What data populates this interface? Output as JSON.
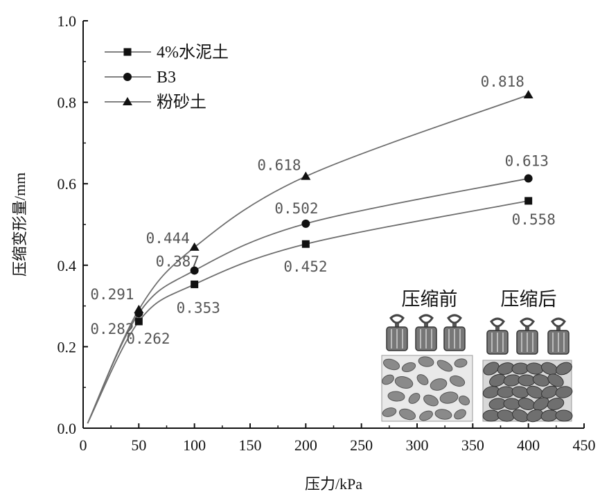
{
  "chart_data": {
    "type": "line",
    "xlabel": "压力/kPa",
    "ylabel": "压缩变形量/mm",
    "xlim": [
      0,
      450
    ],
    "ylim": [
      0.0,
      1.0
    ],
    "x_ticks": [
      "0",
      "50",
      "100",
      "150",
      "200",
      "250",
      "300",
      "350",
      "400",
      "450"
    ],
    "y_ticks": [
      "0.0",
      "0.2",
      "0.4",
      "0.6",
      "0.8",
      "1.0"
    ],
    "grid": false,
    "legend_position": "top-left",
    "x": [
      50,
      100,
      200,
      400
    ],
    "series": [
      {
        "name": "4%水泥土",
        "marker": "square",
        "values": [
          0.262,
          0.353,
          0.452,
          0.558
        ],
        "labels": [
          "0.262",
          "0.353",
          "0.452",
          "0.558"
        ]
      },
      {
        "name": "B3",
        "marker": "circle",
        "values": [
          0.282,
          0.387,
          0.502,
          0.613
        ],
        "labels": [
          "0.282",
          "0.387",
          "0.502",
          "0.613"
        ]
      },
      {
        "name": "粉砂土",
        "marker": "triangle",
        "values": [
          0.291,
          0.444,
          0.618,
          0.818
        ],
        "labels": [
          "0.291",
          "0.444",
          "0.618",
          "0.818"
        ]
      }
    ],
    "inset": {
      "before_label": "压缩前",
      "after_label": "压缩后"
    }
  },
  "colors": {
    "line": "#6e6e6e",
    "marker": "#111111",
    "axis": "#111111",
    "data_label": "#555555"
  }
}
